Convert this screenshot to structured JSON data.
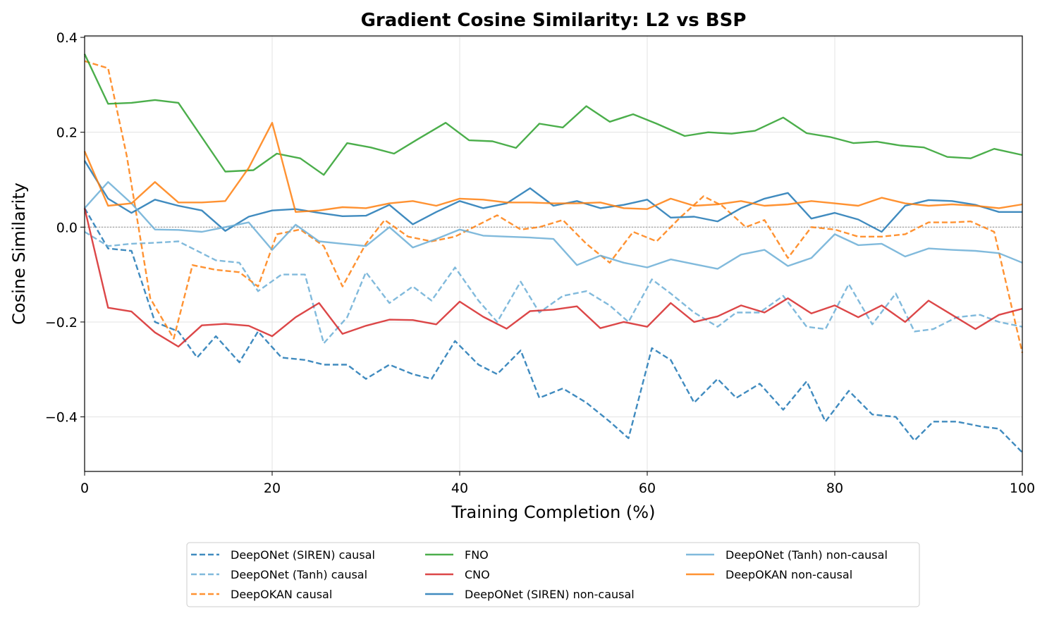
{
  "chart_data": {
    "type": "line",
    "title": "Gradient Cosine Similarity: L2 vs BSP",
    "xlabel": "Training Completion (%)",
    "ylabel": "Cosine Similarity",
    "xlim": [
      0,
      100
    ],
    "ylim": [
      -0.515,
      0.403
    ],
    "xticks": [
      0,
      20,
      40,
      60,
      80,
      100
    ],
    "xtick_labels": [
      "0",
      "20",
      "40",
      "60",
      "80",
      "100"
    ],
    "yticks": [
      -0.4,
      -0.2,
      0.0,
      0.2,
      0.4
    ],
    "ytick_labels": [
      "−0.4",
      "−0.2",
      "0.0",
      "0.2",
      "0.4"
    ],
    "grid": true,
    "zero_line": true,
    "legend_position": "below",
    "series": [
      {
        "name": "DeepONet (SIREN) causal",
        "color": "#1f77b4",
        "dash": true,
        "x": [
          0,
          2.5,
          5,
          7.5,
          10,
          12,
          14,
          16.5,
          18.5,
          21,
          23.5,
          25.5,
          28,
          30,
          32.5,
          35,
          37,
          39.5,
          42,
          44,
          46.5,
          48.5,
          51,
          53.5,
          56,
          58,
          60.5,
          62.5,
          65,
          67.5,
          69.5,
          72,
          74.5,
          77,
          79,
          81.5,
          84,
          86.5,
          88.5,
          90.5,
          93,
          95.5,
          97.5,
          100
        ],
        "values": [
          0.04,
          -0.045,
          -0.05,
          -0.2,
          -0.22,
          -0.275,
          -0.23,
          -0.285,
          -0.22,
          -0.275,
          -0.28,
          -0.29,
          -0.29,
          -0.32,
          -0.29,
          -0.31,
          -0.32,
          -0.24,
          -0.29,
          -0.31,
          -0.26,
          -0.36,
          -0.34,
          -0.37,
          -0.41,
          -0.445,
          -0.255,
          -0.28,
          -0.37,
          -0.32,
          -0.36,
          -0.33,
          -0.385,
          -0.325,
          -0.41,
          -0.345,
          -0.395,
          -0.4,
          -0.45,
          -0.41,
          -0.41,
          -0.42,
          -0.425,
          -0.475
        ]
      },
      {
        "name": "DeepONet (Tanh) causal",
        "color": "#6baed6",
        "dash": true,
        "x": [
          0,
          2.5,
          5,
          7.5,
          10,
          14,
          16.5,
          18.5,
          21,
          23.5,
          25.5,
          28,
          30,
          32.5,
          35,
          37,
          39.5,
          42,
          44,
          46.5,
          48.5,
          51,
          53.5,
          56,
          58,
          60.5,
          62.5,
          65,
          67.5,
          69.5,
          72,
          74.5,
          77,
          79,
          81.5,
          84,
          86.5,
          88.5,
          90.5,
          93,
          95.5,
          97.5,
          100
        ],
        "values": [
          -0.01,
          -0.04,
          -0.035,
          -0.033,
          -0.03,
          -0.07,
          -0.075,
          -0.135,
          -0.1,
          -0.1,
          -0.245,
          -0.19,
          -0.095,
          -0.16,
          -0.125,
          -0.155,
          -0.085,
          -0.155,
          -0.2,
          -0.115,
          -0.18,
          -0.145,
          -0.135,
          -0.165,
          -0.2,
          -0.11,
          -0.14,
          -0.18,
          -0.21,
          -0.18,
          -0.18,
          -0.145,
          -0.21,
          -0.215,
          -0.12,
          -0.205,
          -0.14,
          -0.22,
          -0.215,
          -0.19,
          -0.185,
          -0.2,
          -0.21
        ]
      },
      {
        "name": "DeepOKAN causal",
        "color": "#ff7f0e",
        "dash": true,
        "x": [
          0,
          2.5,
          4.5,
          7,
          9.5,
          11.5,
          14,
          16.5,
          18.5,
          20.5,
          23,
          25.5,
          27.5,
          30,
          32,
          34.5,
          37,
          39.5,
          41.5,
          44,
          46.5,
          48.5,
          51,
          53.5,
          56,
          58.5,
          61,
          63.5,
          66,
          68,
          70.5,
          72.5,
          75,
          77.5,
          80,
          82.5,
          85,
          87.5,
          90,
          92.5,
          94.5,
          97,
          100
        ],
        "values": [
          0.35,
          0.335,
          0.15,
          -0.15,
          -0.235,
          -0.08,
          -0.09,
          -0.095,
          -0.125,
          -0.015,
          -0.005,
          -0.04,
          -0.125,
          -0.035,
          0.015,
          -0.02,
          -0.03,
          -0.02,
          0.0,
          0.025,
          -0.005,
          0.0,
          0.015,
          -0.035,
          -0.075,
          -0.01,
          -0.03,
          0.02,
          0.065,
          0.045,
          0.0,
          0.015,
          -0.065,
          0.0,
          -0.005,
          -0.02,
          -0.02,
          -0.015,
          0.01,
          0.01,
          0.012,
          -0.01,
          -0.265
        ]
      },
      {
        "name": "FNO",
        "color": "#2ca02c",
        "dash": false,
        "x": [
          0,
          2.5,
          5,
          7.5,
          10,
          15,
          18,
          20.5,
          23,
          25.5,
          28,
          30.5,
          33,
          35.5,
          38.5,
          41,
          43.5,
          46,
          48.5,
          51,
          53.5,
          56,
          58.5,
          61,
          64,
          66.5,
          69,
          71.5,
          74.5,
          77,
          79.5,
          82,
          84.5,
          87,
          89.5,
          92,
          94.5,
          97,
          100
        ],
        "values": [
          0.365,
          0.26,
          0.262,
          0.268,
          0.262,
          0.117,
          0.12,
          0.155,
          0.145,
          0.11,
          0.177,
          0.168,
          0.155,
          0.185,
          0.22,
          0.183,
          0.181,
          0.167,
          0.218,
          0.21,
          0.255,
          0.222,
          0.238,
          0.218,
          0.192,
          0.2,
          0.197,
          0.203,
          0.231,
          0.198,
          0.19,
          0.177,
          0.18,
          0.172,
          0.168,
          0.148,
          0.145,
          0.165,
          0.152
        ]
      },
      {
        "name": "CNO",
        "color": "#d62728",
        "dash": false,
        "x": [
          0,
          2.5,
          5,
          7.5,
          10,
          12.5,
          15,
          17.5,
          20,
          22.5,
          25,
          27.5,
          30,
          32.5,
          35,
          37.5,
          40,
          42.5,
          45,
          47.5,
          50,
          52.5,
          55,
          57.5,
          60,
          62.5,
          65,
          67.5,
          70,
          72.5,
          75,
          77.5,
          80,
          82.5,
          85,
          87.5,
          90,
          92.5,
          95,
          97.5,
          100
        ],
        "values": [
          0.04,
          -0.17,
          -0.178,
          -0.222,
          -0.252,
          -0.207,
          -0.204,
          -0.208,
          -0.23,
          -0.19,
          -0.16,
          -0.225,
          -0.208,
          -0.195,
          -0.196,
          -0.205,
          -0.157,
          -0.189,
          -0.214,
          -0.177,
          -0.174,
          -0.167,
          -0.213,
          -0.2,
          -0.21,
          -0.16,
          -0.2,
          -0.188,
          -0.165,
          -0.18,
          -0.15,
          -0.182,
          -0.165,
          -0.19,
          -0.165,
          -0.2,
          -0.155,
          -0.185,
          -0.215,
          -0.185,
          -0.172
        ]
      },
      {
        "name": "DeepONet (SIREN) non-causal",
        "color": "#1f77b4",
        "dash": false,
        "x": [
          0,
          2.5,
          5,
          7.5,
          10,
          12.5,
          15,
          17.5,
          20,
          22.5,
          25,
          27.5,
          30,
          32.5,
          35,
          37.5,
          40,
          42.5,
          45,
          47.5,
          50,
          52.5,
          55,
          57.5,
          60,
          62.5,
          65,
          67.5,
          70,
          72.5,
          75,
          77.5,
          80,
          82.5,
          85,
          87.5,
          90,
          92.5,
          95,
          97.5,
          100
        ],
        "values": [
          0.14,
          0.06,
          0.03,
          0.058,
          0.045,
          0.035,
          -0.008,
          0.022,
          0.035,
          0.038,
          0.03,
          0.023,
          0.024,
          0.047,
          0.006,
          0.032,
          0.055,
          0.04,
          0.05,
          0.082,
          0.045,
          0.055,
          0.04,
          0.047,
          0.058,
          0.02,
          0.022,
          0.012,
          0.04,
          0.06,
          0.072,
          0.018,
          0.03,
          0.016,
          -0.01,
          0.045,
          0.057,
          0.055,
          0.047,
          0.032,
          0.032
        ]
      },
      {
        "name": "DeepONet (Tanh) non-causal",
        "color": "#6baed6",
        "dash": false,
        "x": [
          0,
          2.5,
          5,
          7.5,
          10,
          12.5,
          15,
          17.5,
          20,
          22.5,
          25,
          27.5,
          30,
          32.5,
          35,
          37.5,
          40,
          42.5,
          45,
          47.5,
          50,
          52.5,
          55,
          57.5,
          60,
          62.5,
          65,
          67.5,
          70,
          72.5,
          75,
          77.5,
          80,
          82.5,
          85,
          87.5,
          90,
          92.5,
          95,
          97.5,
          100
        ],
        "values": [
          0.04,
          0.095,
          0.05,
          -0.005,
          -0.006,
          -0.01,
          0.0,
          0.01,
          -0.048,
          0.005,
          -0.03,
          -0.035,
          -0.04,
          0.0,
          -0.043,
          -0.025,
          -0.005,
          -0.018,
          -0.02,
          -0.022,
          -0.025,
          -0.08,
          -0.06,
          -0.075,
          -0.085,
          -0.068,
          -0.078,
          -0.088,
          -0.058,
          -0.048,
          -0.082,
          -0.065,
          -0.015,
          -0.038,
          -0.035,
          -0.062,
          -0.045,
          -0.048,
          -0.05,
          -0.055,
          -0.075
        ]
      },
      {
        "name": "DeepOKAN non-causal",
        "color": "#ff7f0e",
        "dash": false,
        "x": [
          0,
          2.5,
          5,
          7.5,
          10,
          12.5,
          15,
          17.5,
          20,
          22.5,
          25,
          27.5,
          30,
          32.5,
          35,
          37.5,
          40,
          42.5,
          45,
          47.5,
          50,
          52.5,
          55,
          57.5,
          60,
          62.5,
          65,
          67.5,
          70,
          72.5,
          75,
          77.5,
          80,
          82.5,
          85,
          87.5,
          90,
          92.5,
          95,
          97.5,
          100
        ],
        "values": [
          0.16,
          0.045,
          0.05,
          0.095,
          0.052,
          0.052,
          0.055,
          0.125,
          0.22,
          0.032,
          0.035,
          0.042,
          0.04,
          0.05,
          0.055,
          0.045,
          0.06,
          0.058,
          0.052,
          0.052,
          0.05,
          0.05,
          0.052,
          0.04,
          0.038,
          0.06,
          0.045,
          0.048,
          0.055,
          0.045,
          0.048,
          0.055,
          0.05,
          0.045,
          0.062,
          0.05,
          0.045,
          0.048,
          0.045,
          0.04,
          0.048
        ]
      }
    ],
    "legend": {
      "columns": [
        [
          "DeepONet (SIREN) causal",
          "DeepONet (Tanh) causal",
          "DeepOKAN causal"
        ],
        [
          "FNO",
          "CNO",
          "DeepONet (SIREN) non-causal"
        ],
        [
          "DeepONet (Tanh) non-causal",
          "DeepOKAN non-causal"
        ]
      ]
    }
  }
}
